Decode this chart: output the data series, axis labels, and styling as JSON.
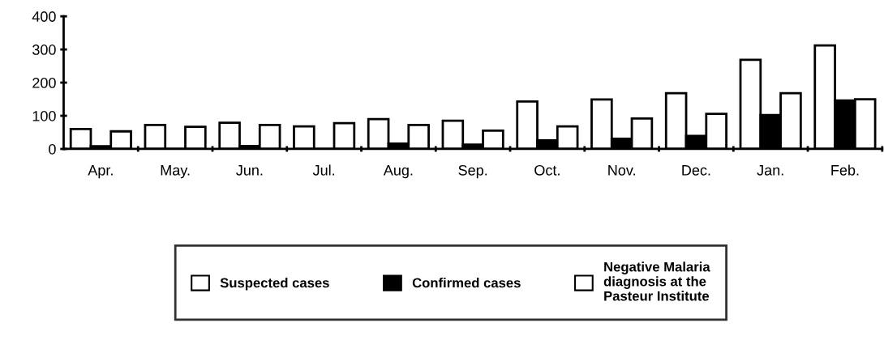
{
  "chart_data": {
    "type": "bar",
    "categories": [
      "Apr.",
      "May.",
      "Jun.",
      "Jul.",
      "Aug.",
      "Sep.",
      "Oct.",
      "Nov.",
      "Dec.",
      "Jan.",
      "Feb."
    ],
    "series": [
      {
        "name": "Suspected cases",
        "color": "#ffffff",
        "values": [
          60,
          72,
          79,
          68,
          90,
          85,
          143,
          149,
          168,
          269,
          312
        ]
      },
      {
        "name": "Confirmed cases",
        "color": "#000000",
        "values": [
          8,
          0,
          9,
          0,
          16,
          13,
          26,
          31,
          39,
          102,
          146
        ]
      },
      {
        "name": "Negative Malaria diagnosis at the Pasteur Institute",
        "color": "#ffffff",
        "values": [
          53,
          67,
          72,
          78,
          72,
          55,
          68,
          92,
          106,
          168,
          150
        ]
      }
    ],
    "ylim": [
      0,
      400
    ],
    "yticks": [
      0,
      100,
      200,
      300,
      400
    ],
    "grid": false,
    "legend": "bottom"
  }
}
